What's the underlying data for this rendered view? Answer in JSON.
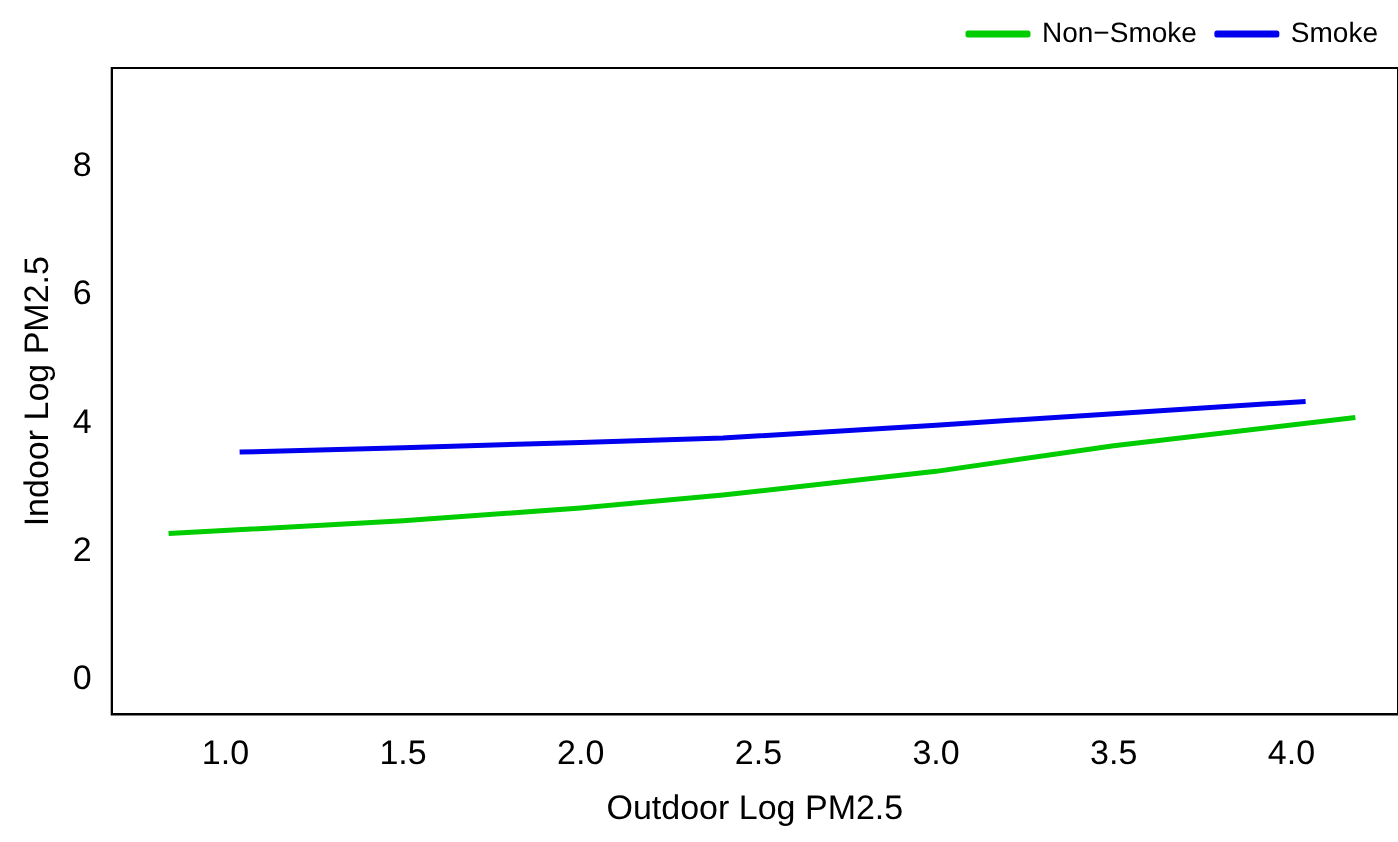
{
  "chart_data": {
    "type": "line",
    "xlabel": "Outdoor Log PM2.5",
    "ylabel": "Indoor Log PM2.5",
    "xlim": [
      0.68,
      4.3
    ],
    "ylim": [
      -0.54,
      9.54
    ],
    "xticks": [
      {
        "value": 1,
        "label": "1.0"
      },
      1.5,
      {
        "value": 2,
        "label": "2.0"
      },
      2.5,
      {
        "value": 3,
        "label": "3.0"
      },
      3.5,
      {
        "value": 4,
        "label": "4.0"
      }
    ],
    "yticks": [
      0,
      2,
      4,
      6,
      8
    ],
    "grid": false,
    "legend": "top right",
    "marker": "none",
    "line_style": "solid",
    "series": [
      {
        "name": "Non−Smoke",
        "color": "#00cd00",
        "x": [
          0.84,
          1.5,
          2.0,
          2.4,
          3.0,
          3.5,
          4.18
        ],
        "values": [
          2.28,
          2.48,
          2.68,
          2.88,
          3.25,
          3.65,
          4.09
        ]
      },
      {
        "name": "Smoke",
        "color": "#0000ee",
        "x": [
          1.04,
          1.5,
          2.0,
          2.4,
          3.0,
          3.5,
          4.04
        ],
        "values": [
          3.55,
          3.62,
          3.7,
          3.77,
          3.97,
          4.15,
          4.34
        ]
      }
    ]
  }
}
